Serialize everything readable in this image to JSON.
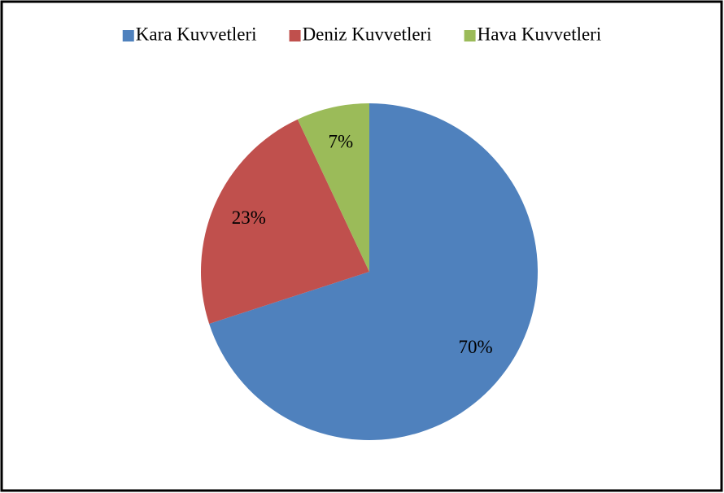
{
  "chart_data": {
    "type": "pie",
    "categories": [
      "Kara Kuvvetleri",
      "Deniz Kuvvetleri",
      "Hava Kuvvetleri"
    ],
    "values": [
      70,
      23,
      7
    ],
    "value_labels": [
      "70%",
      "23%",
      "7%"
    ],
    "colors": [
      "#4f81bd",
      "#c0504d",
      "#9bbb59"
    ],
    "legend": "top"
  }
}
